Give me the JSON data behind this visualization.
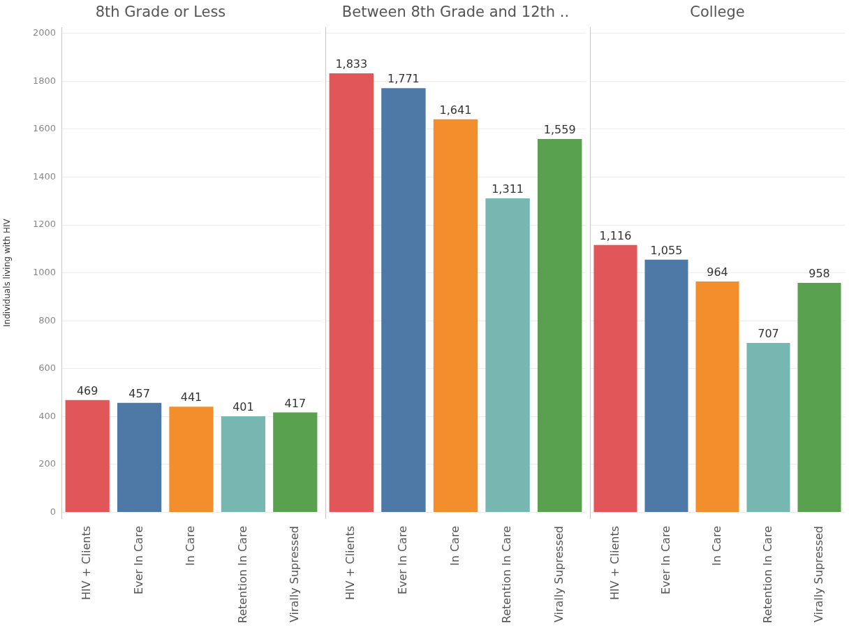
{
  "chart_data": [
    {
      "type": "bar",
      "title": "8th Grade or Less",
      "ylabel": "Individuals living with HIV",
      "categories": [
        "HIV + Clients",
        "Ever In Care",
        "In Care",
        "Retention In Care",
        "Virally Supressed"
      ],
      "values": [
        469,
        457,
        441,
        401,
        417
      ],
      "value_labels": [
        "469",
        "457",
        "441",
        "401",
        "417"
      ],
      "colors": [
        "#e15759",
        "#4e79a7",
        "#f28e2b",
        "#76b7b2",
        "#59a14f"
      ],
      "ylim": [
        -25,
        2025
      ],
      "yticks": [
        0,
        200,
        400,
        600,
        800,
        1000,
        1200,
        1400,
        1600,
        1800,
        2000
      ],
      "grid": "y"
    },
    {
      "type": "bar",
      "title": "Between 8th Grade and 12th ..",
      "categories": [
        "HIV + Clients",
        "Ever In Care",
        "In Care",
        "Retention In Care",
        "Virally Supressed"
      ],
      "values": [
        1833,
        1771,
        1641,
        1311,
        1559
      ],
      "value_labels": [
        "1,833",
        "1,771",
        "1,641",
        "1,311",
        "1,559"
      ],
      "colors": [
        "#e15759",
        "#4e79a7",
        "#f28e2b",
        "#76b7b2",
        "#59a14f"
      ],
      "ylim": [
        -25,
        2025
      ],
      "yticks": [
        0,
        200,
        400,
        600,
        800,
        1000,
        1200,
        1400,
        1600,
        1800,
        2000
      ],
      "grid": "y",
      "tick_labels": "x"
    },
    {
      "type": "bar",
      "title": "College",
      "categories": [
        "HIV + Clients",
        "Ever In Care",
        "In Care",
        "Retention In Care",
        "Virally Supressed"
      ],
      "values": [
        1116,
        1055,
        964,
        707,
        958
      ],
      "value_labels": [
        "1,116",
        "1,055",
        "964",
        "707",
        "958"
      ],
      "colors": [
        "#e15759",
        "#4e79a7",
        "#f28e2b",
        "#76b7b2",
        "#59a14f"
      ],
      "ylim": [
        -25,
        2025
      ],
      "yticks": [
        0,
        200,
        400,
        600,
        800,
        1000,
        1200,
        1400,
        1600,
        1800,
        2000
      ],
      "grid": "y",
      "tick_labels": "x"
    }
  ]
}
